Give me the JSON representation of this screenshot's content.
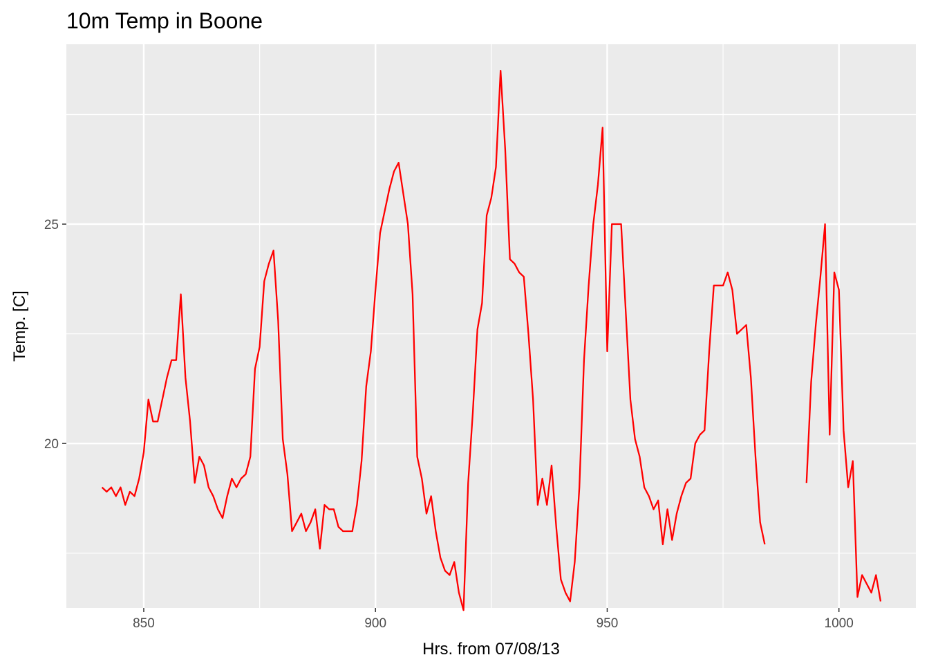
{
  "chart_data": {
    "type": "line",
    "title": "10m Temp in Boone",
    "xlabel": "Hrs. from 07/08/13",
    "ylabel": "Temp. [C]",
    "xlim": [
      833.3,
      1016.6
    ],
    "ylim": [
      16.25,
      29.1
    ],
    "x_ticks": [
      850,
      900,
      950,
      1000
    ],
    "x_minor_ticks": [
      875,
      925,
      975
    ],
    "y_ticks": [
      20,
      25
    ],
    "y_minor_ticks": [
      17.5,
      22.5,
      27.5
    ],
    "grid": true,
    "panel_background": "#ebebeb",
    "grid_color": "#ffffff",
    "line_color": "#ff0000",
    "series": [
      {
        "segments": [
          {
            "x": [
              841,
              842,
              843,
              844,
              845,
              846,
              847,
              848,
              849,
              850,
              851,
              852,
              853,
              854,
              855,
              856,
              857,
              858,
              859,
              860,
              861,
              862,
              863,
              864,
              865,
              866,
              867,
              868,
              869,
              870,
              871,
              872,
              873,
              874,
              875,
              876,
              877,
              878,
              879,
              880,
              881,
              882,
              883,
              884,
              885,
              886,
              887,
              888,
              889,
              890,
              891,
              892,
              893,
              894,
              895,
              896,
              897,
              898,
              899,
              900,
              901,
              902,
              903,
              904,
              905,
              906,
              907,
              908,
              909,
              910,
              911,
              912,
              913,
              914,
              915,
              916,
              917,
              918,
              919,
              920,
              921,
              922,
              923,
              924,
              925,
              926,
              927,
              928,
              929,
              930,
              931,
              932,
              933,
              934,
              935,
              936,
              937,
              938,
              939,
              940,
              941,
              942,
              943,
              944,
              945,
              946,
              947,
              948,
              949,
              950,
              951,
              952,
              953,
              954,
              955,
              956,
              957,
              958,
              959,
              960,
              961,
              962,
              963,
              964,
              965,
              966,
              967,
              968,
              969,
              970,
              971,
              972,
              973,
              974,
              975,
              976,
              977,
              978,
              979,
              980,
              981,
              982,
              983,
              984
            ],
            "y": [
              19.0,
              18.9,
              19.0,
              18.8,
              19.0,
              18.6,
              18.9,
              18.8,
              19.2,
              19.8,
              21.0,
              20.5,
              20.5,
              21.0,
              21.5,
              21.9,
              21.9,
              23.4,
              21.5,
              20.5,
              19.1,
              19.7,
              19.5,
              19.0,
              18.8,
              18.5,
              18.3,
              18.8,
              19.2,
              19.0,
              19.2,
              19.3,
              19.7,
              21.7,
              22.2,
              23.7,
              24.1,
              24.4,
              22.8,
              20.1,
              19.3,
              18.0,
              18.2,
              18.4,
              18.0,
              18.2,
              18.5,
              17.6,
              18.6,
              18.5,
              18.5,
              18.1,
              18.0,
              18.0,
              18.0,
              18.6,
              19.6,
              21.3,
              22.1,
              23.5,
              24.8,
              25.3,
              25.8,
              26.2,
              26.4,
              25.7,
              25.0,
              23.4,
              19.7,
              19.2,
              18.4,
              18.8,
              18.0,
              17.4,
              17.1,
              17.0,
              17.3,
              16.6,
              16.2,
              19.1,
              20.7,
              22.6,
              23.2,
              25.2,
              25.6,
              26.3,
              28.5,
              26.7,
              24.2,
              24.1,
              23.9,
              23.8,
              22.5,
              21.0,
              18.6,
              19.2,
              18.6,
              19.5,
              18.1,
              16.9,
              16.6,
              16.4,
              17.3,
              19.0,
              21.9,
              23.6,
              25.0,
              25.9,
              27.2,
              22.1,
              25.0,
              25.0,
              25.0,
              23.0,
              21.0,
              20.1,
              19.7,
              19.0,
              18.8,
              18.5,
              18.7,
              17.7,
              18.5,
              17.8,
              18.4,
              18.8,
              19.1,
              19.2,
              20.0,
              20.2,
              20.3,
              22.1,
              23.6,
              23.6,
              23.6,
              23.9,
              23.5,
              22.5,
              22.6,
              22.7,
              21.5,
              19.7,
              18.2,
              17.7
            ]
          },
          {
            "x": [
              993,
              994,
              995,
              996,
              997,
              998,
              999,
              1000,
              1001,
              1002,
              1003,
              1004,
              1005,
              1006,
              1007,
              1008,
              1009
            ],
            "y": [
              19.1,
              21.4,
              22.7,
              23.8,
              25.0,
              20.2,
              23.9,
              23.5,
              20.3,
              19.0,
              19.6,
              16.5,
              17.0,
              16.8,
              16.6,
              17.0,
              16.4
            ]
          }
        ]
      }
    ]
  }
}
